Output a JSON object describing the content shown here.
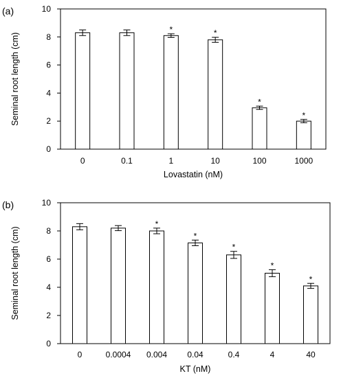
{
  "chart_data": [
    {
      "type": "bar",
      "panel_label": "(a)",
      "xlabel": "Lovastatin (nM)",
      "ylabel": "Seminal root length (cm)",
      "ylim": [
        0,
        10
      ],
      "yticks": [
        "0",
        "2",
        "4",
        "6",
        "8",
        "10"
      ],
      "categories": [
        "0",
        "0.1",
        "1",
        "10",
        "100",
        "1000"
      ],
      "values": [
        8.3,
        8.3,
        8.1,
        7.8,
        2.95,
        2.0
      ],
      "errors": [
        0.2,
        0.2,
        0.13,
        0.18,
        0.12,
        0.12
      ],
      "significance": [
        "",
        "",
        "*",
        "*",
        "*",
        "*"
      ],
      "grid": false,
      "bar_fill": "#ffffff",
      "bar_stroke": "#000000"
    },
    {
      "type": "bar",
      "panel_label": "(b)",
      "xlabel": "KT (nM)",
      "ylabel": "Seminal root length (cm)",
      "ylim": [
        0,
        10
      ],
      "yticks": [
        "0",
        "2",
        "4",
        "6",
        "8",
        "10"
      ],
      "categories": [
        "0",
        "0.0004",
        "0.004",
        "0.04",
        "0.4",
        "4",
        "40"
      ],
      "values": [
        8.3,
        8.2,
        8.0,
        7.15,
        6.3,
        5.0,
        4.1
      ],
      "errors": [
        0.22,
        0.18,
        0.2,
        0.2,
        0.25,
        0.25,
        0.18
      ],
      "significance": [
        "",
        "",
        "*",
        "*",
        "*",
        "*",
        "*"
      ],
      "grid": false,
      "bar_fill": "#ffffff",
      "bar_stroke": "#000000"
    }
  ]
}
